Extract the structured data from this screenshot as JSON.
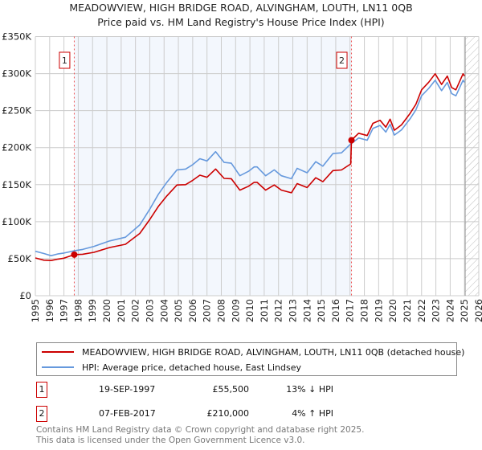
{
  "title": "MEADOWVIEW, HIGH BRIDGE ROAD, ALVINGHAM, LOUTH, LN11 0QB",
  "subtitle": "Price paid vs. HM Land Registry's House Price Index (HPI)",
  "chart_data": {
    "type": "line",
    "xlim": [
      1995,
      2026
    ],
    "ylim": [
      0,
      350000
    ],
    "x_ticks": [
      "1995",
      "1996",
      "1997",
      "1998",
      "1999",
      "2000",
      "2001",
      "2002",
      "2003",
      "2004",
      "2005",
      "2006",
      "2007",
      "2008",
      "2009",
      "2010",
      "2011",
      "2012",
      "2013",
      "2014",
      "2015",
      "2016",
      "2017",
      "2018",
      "2019",
      "2020",
      "2021",
      "2022",
      "2023",
      "2024",
      "2025",
      "2026"
    ],
    "y_ticks": [
      {
        "v": 0,
        "label": "£0"
      },
      {
        "v": 50000,
        "label": "£50K"
      },
      {
        "v": 100000,
        "label": "£100K"
      },
      {
        "v": 150000,
        "label": "£150K"
      },
      {
        "v": 200000,
        "label": "£200K"
      },
      {
        "v": 250000,
        "label": "£250K"
      },
      {
        "v": 300000,
        "label": "£300K"
      },
      {
        "v": 350000,
        "label": "£350K"
      }
    ],
    "grid": true,
    "forecast_hatch_from": 2025.05,
    "shaded_between_sales": [
      1997.72,
      2017.1
    ],
    "series": [
      {
        "name": "MEADOWVIEW, HIGH BRIDGE ROAD, ALVINGHAM, LOUTH, LN11 0QB (detached house)",
        "color": "#cc0000",
        "points": [
          [
            1995.0,
            51000
          ],
          [
            1995.6,
            48000
          ],
          [
            1996.1,
            47500
          ],
          [
            1996.6,
            49500
          ],
          [
            1997.0,
            50700
          ],
          [
            1997.72,
            55500
          ],
          [
            1998.3,
            56000
          ],
          [
            1999.1,
            58600
          ],
          [
            2000.2,
            65100
          ],
          [
            2001.3,
            69500
          ],
          [
            2002.3,
            84100
          ],
          [
            2003.0,
            103000
          ],
          [
            2003.6,
            120600
          ],
          [
            2004.15,
            133800
          ],
          [
            2004.9,
            149600
          ],
          [
            2005.5,
            150000
          ],
          [
            2006.0,
            155800
          ],
          [
            2006.5,
            162800
          ],
          [
            2007.0,
            160000
          ],
          [
            2007.6,
            171200
          ],
          [
            2008.2,
            158400
          ],
          [
            2008.7,
            158000
          ],
          [
            2009.3,
            142600
          ],
          [
            2009.9,
            147800
          ],
          [
            2010.3,
            153100
          ],
          [
            2010.5,
            153100
          ],
          [
            2011.1,
            142600
          ],
          [
            2011.7,
            149600
          ],
          [
            2012.2,
            142600
          ],
          [
            2012.9,
            139000
          ],
          [
            2013.3,
            151400
          ],
          [
            2014.0,
            146100
          ],
          [
            2014.6,
            159300
          ],
          [
            2015.1,
            154000
          ],
          [
            2015.8,
            169000
          ],
          [
            2016.4,
            169800
          ],
          [
            2017.05,
            178000
          ],
          [
            2017.1,
            210000
          ],
          [
            2017.6,
            219400
          ],
          [
            2018.2,
            216300
          ],
          [
            2018.6,
            232800
          ],
          [
            2019.1,
            236900
          ],
          [
            2019.5,
            227600
          ],
          [
            2019.8,
            238400
          ],
          [
            2020.1,
            223500
          ],
          [
            2020.6,
            230700
          ],
          [
            2021.2,
            246200
          ],
          [
            2021.6,
            258500
          ],
          [
            2022.0,
            278100
          ],
          [
            2022.5,
            288400
          ],
          [
            2022.95,
            299700
          ],
          [
            2023.4,
            285300
          ],
          [
            2023.8,
            296600
          ],
          [
            2024.1,
            281200
          ],
          [
            2024.4,
            278100
          ],
          [
            2024.9,
            299700
          ],
          [
            2025.0,
            296600
          ]
        ]
      },
      {
        "name": "HPI: Average price, detached house, East Lindsey",
        "color": "#6699dd",
        "points": [
          [
            1995.0,
            60000
          ],
          [
            1995.6,
            57000
          ],
          [
            1996.1,
            54000
          ],
          [
            1996.6,
            56500
          ],
          [
            1997.0,
            57600
          ],
          [
            1997.8,
            61000
          ],
          [
            1998.3,
            62500
          ],
          [
            1999.1,
            66600
          ],
          [
            2000.2,
            74000
          ],
          [
            2001.3,
            79000
          ],
          [
            2002.3,
            95600
          ],
          [
            2003.0,
            117000
          ],
          [
            2003.6,
            137000
          ],
          [
            2004.15,
            152000
          ],
          [
            2004.9,
            170000
          ],
          [
            2005.5,
            171000
          ],
          [
            2006.0,
            177000
          ],
          [
            2006.5,
            185000
          ],
          [
            2007.0,
            182000
          ],
          [
            2007.6,
            194600
          ],
          [
            2008.2,
            180000
          ],
          [
            2008.7,
            179000
          ],
          [
            2009.3,
            162000
          ],
          [
            2009.9,
            168000
          ],
          [
            2010.3,
            174000
          ],
          [
            2010.5,
            174000
          ],
          [
            2011.1,
            162000
          ],
          [
            2011.7,
            170000
          ],
          [
            2012.2,
            162000
          ],
          [
            2012.9,
            158000
          ],
          [
            2013.3,
            172000
          ],
          [
            2014.0,
            166000
          ],
          [
            2014.6,
            181000
          ],
          [
            2015.1,
            175000
          ],
          [
            2015.8,
            192000
          ],
          [
            2016.4,
            193000
          ],
          [
            2017.0,
            204000
          ],
          [
            2017.6,
            213000
          ],
          [
            2018.2,
            210000
          ],
          [
            2018.6,
            226000
          ],
          [
            2019.1,
            230000
          ],
          [
            2019.5,
            221000
          ],
          [
            2019.8,
            231500
          ],
          [
            2020.1,
            217000
          ],
          [
            2020.6,
            224000
          ],
          [
            2021.2,
            239000
          ],
          [
            2021.6,
            251000
          ],
          [
            2022.0,
            270000
          ],
          [
            2022.5,
            280000
          ],
          [
            2022.95,
            291000
          ],
          [
            2023.4,
            277000
          ],
          [
            2023.8,
            288000
          ],
          [
            2024.1,
            273000
          ],
          [
            2024.4,
            270000
          ],
          [
            2024.9,
            291000
          ],
          [
            2025.0,
            288000
          ]
        ]
      }
    ],
    "annotations": [
      {
        "label": "1",
        "x": 1997.72,
        "y": 55500
      },
      {
        "label": "2",
        "x": 2017.1,
        "y": 210000
      }
    ]
  },
  "legend": {
    "items": [
      "MEADOWVIEW, HIGH BRIDGE ROAD, ALVINGHAM, LOUTH, LN11 0QB (detached house)",
      "HPI: Average price, detached house, East Lindsey"
    ]
  },
  "sales": [
    {
      "num": "1",
      "date": "19-SEP-1997",
      "price": "£55,500",
      "hpi": "13% ↓ HPI"
    },
    {
      "num": "2",
      "date": "07-FEB-2017",
      "price": "£210,000",
      "hpi": "4% ↑ HPI"
    }
  ],
  "footer": {
    "line1": "Contains HM Land Registry data © Crown copyright and database right 2025.",
    "line2": "This data is licensed under the Open Government Licence v3.0."
  }
}
